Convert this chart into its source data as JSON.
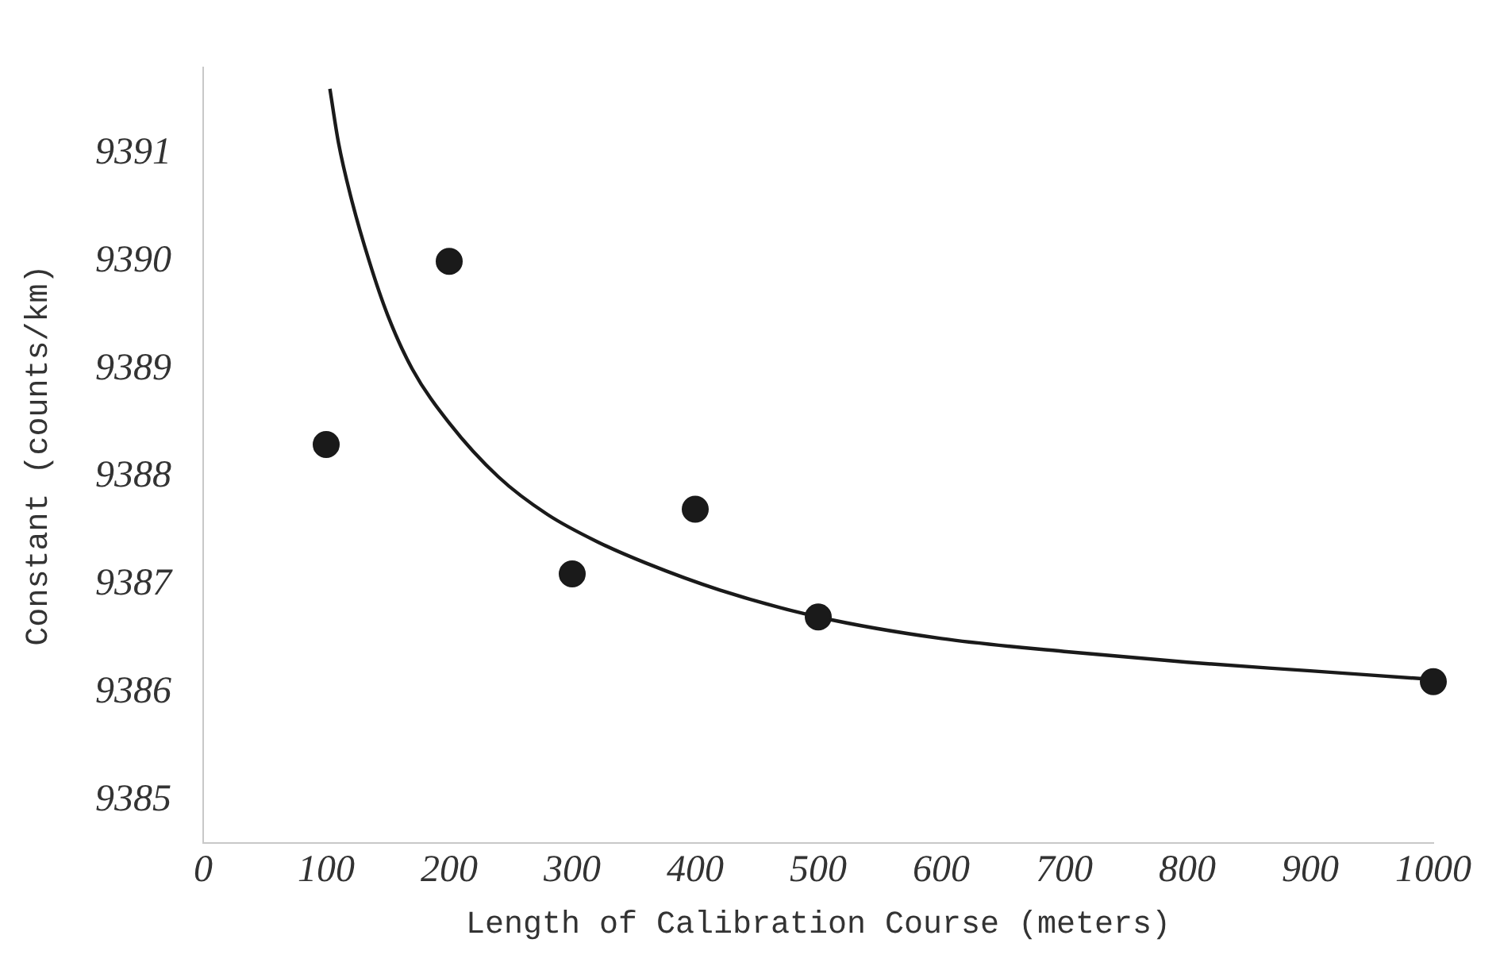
{
  "chart_data": {
    "type": "scatter",
    "xlabel": "Length of Calibration Course (meters)",
    "ylabel": "Constant (counts/km)",
    "xlim": [
      0,
      1000
    ],
    "xticks": [
      0,
      100,
      200,
      300,
      400,
      500,
      600,
      700,
      800,
      900,
      1000
    ],
    "ylim": [
      9384.6,
      9391.8
    ],
    "yticks": [
      9385,
      9386,
      9387,
      9388,
      9389,
      9390,
      9391
    ],
    "grid": false,
    "legend": false,
    "series": [
      {
        "color": "#1a1a1a",
        "marker": "circle",
        "x": [
          100,
          200,
          300,
          400,
          500,
          1000
        ],
        "values": [
          9388.3,
          9390.0,
          9387.1,
          9387.7,
          9386.7,
          9386.1
        ]
      },
      {
        "type": "line",
        "color": "#1a1a1a",
        "marker": "none",
        "x": [
          103,
          110,
          120,
          135,
          150,
          170,
          200,
          240,
          280,
          320,
          360,
          420,
          500,
          600,
          700,
          800,
          900,
          1000
        ],
        "values": [
          9391.6,
          9391.1,
          9390.6,
          9390.0,
          9389.5,
          9389.0,
          9388.5,
          9388.0,
          9387.65,
          9387.4,
          9387.2,
          9386.95,
          9386.7,
          9386.5,
          9386.38,
          9386.28,
          9386.2,
          9386.12
        ]
      }
    ]
  }
}
